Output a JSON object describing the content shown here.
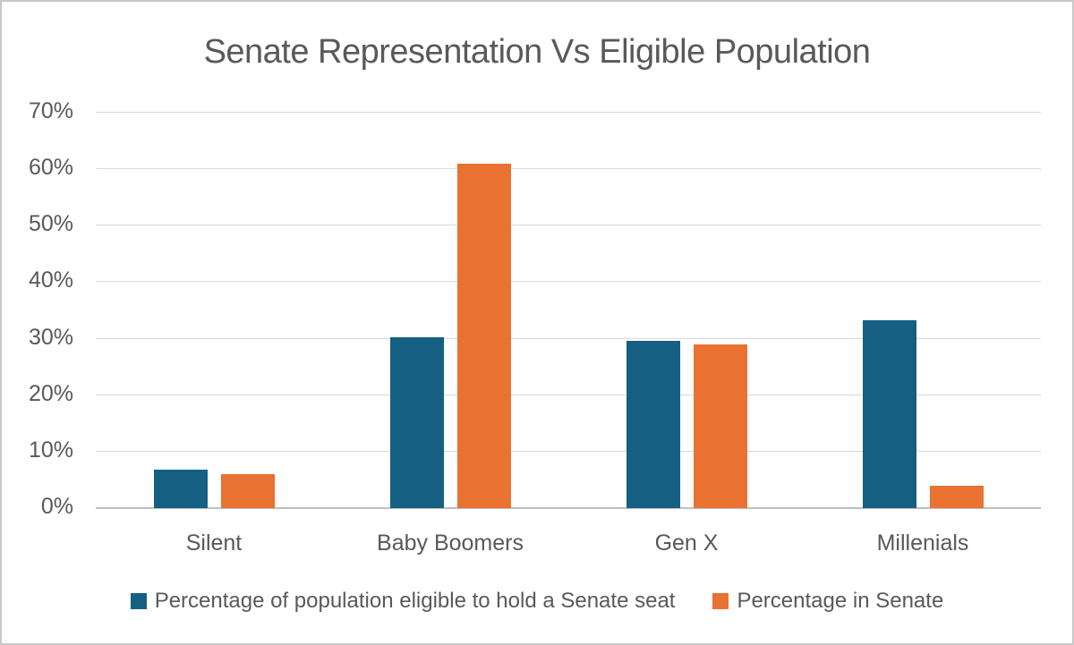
{
  "chart_data": {
    "type": "bar",
    "title": "Senate Representation Vs Eligible Population",
    "categories": [
      "Silent",
      "Baby Boomers",
      "Gen X",
      "Millenials"
    ],
    "series": [
      {
        "name": "Percentage of population eligible to hold a Senate seat",
        "color": "#156082",
        "values": [
          6.8,
          30.2,
          29.6,
          33.3
        ]
      },
      {
        "name": "Percentage in Senate",
        "color": "#E97132",
        "values": [
          6,
          61,
          29,
          4
        ]
      }
    ],
    "xlabel": "",
    "ylabel": "",
    "y_axis": {
      "min": 0,
      "max": 70,
      "tick_step": 10,
      "tick_labels": [
        "0%",
        "10%",
        "20%",
        "30%",
        "40%",
        "50%",
        "60%",
        "70%"
      ]
    },
    "grid": true,
    "legend_position": "bottom",
    "colors": {
      "text": "#595959",
      "gridline": "#D9D9D9",
      "axis_line": "#BFBFBF",
      "background": "#FFFFFF",
      "frame_border": "#C8C8C8"
    }
  }
}
